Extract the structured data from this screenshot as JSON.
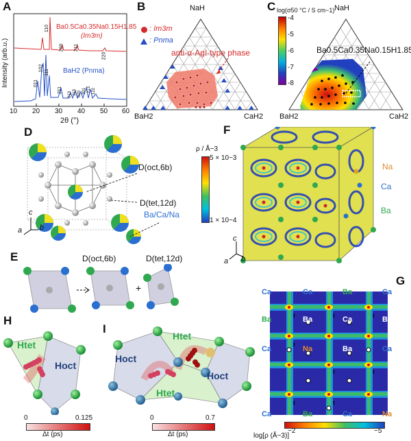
{
  "panels": {
    "A": "A",
    "B": "B",
    "C": "C",
    "D": "D",
    "E": "E",
    "F": "F",
    "G": "G",
    "H": "H",
    "I": "I"
  },
  "panel_A": {
    "ylabel": "Intensity (arb.u.)",
    "xlabel": "2θ (°)",
    "xticks": [
      "10",
      "20",
      "30",
      "40",
      "50",
      "60"
    ],
    "red_formula": "Ba0.5Ca0.35Na0.15H1.85",
    "red_phase": "(Im3m)",
    "blue_label": "BaH2 (Pnma)",
    "red_peaks": [
      "110",
      "200",
      "211",
      "220"
    ],
    "blue_peaks": [
      "011",
      "102",
      "111",
      "211",
      "013",
      "113",
      "020",
      "301",
      "213",
      "122"
    ]
  },
  "panel_B": {
    "top": "NaH",
    "left": "BaH2",
    "right": "CaH2",
    "legend_red": ": Im3m",
    "legend_blue": ": Pnma",
    "annotation": "anti-α-AgI-type phase"
  },
  "panel_C": {
    "colorbar_title": "log(σ50 °C / S cm−1)",
    "colorbar_ticks": [
      "-4",
      "-5",
      "-6",
      "-7",
      "-8"
    ],
    "top": "NaH",
    "left": "BaH2",
    "right": "CaH2",
    "formula": "Ba0.5Ca0.35Na0.15H1.85"
  },
  "panel_D": {
    "label_oct": "D(oct,6b)",
    "label_tet": "D(tet,12d)",
    "label_cations": "Ba/Ca/Na",
    "axes": {
      "c": "c",
      "a": "a",
      "b": "b"
    }
  },
  "panel_E": {
    "label_oct": "D(oct,6b)",
    "label_tet": "D(tet,12d)",
    "plus": "+"
  },
  "panel_F": {
    "density_title": "ρ / Å−3",
    "max": "5 × 10−3",
    "min": "1 × 10−4",
    "na": "Na",
    "ca": "Ca",
    "ba": "Ba",
    "axes": {
      "c": "c",
      "a": "a",
      "b": "b"
    }
  },
  "panel_G": {
    "labels": [
      {
        "t": "Ca",
        "c": "#2a6fd0"
      },
      {
        "t": "Ca",
        "c": "#2a6fd0"
      },
      {
        "t": "Ba",
        "c": "#2fa84f"
      },
      {
        "t": "Ca",
        "c": "#2a6fd0"
      },
      {
        "t": "Ba",
        "c": "#2fa84f"
      },
      {
        "t": "Ba",
        "c": "#ffffff"
      },
      {
        "t": "Ca",
        "c": "#ffffff"
      },
      {
        "t": "Ba",
        "c": "#ffffff"
      },
      {
        "t": "Ca",
        "c": "#2a6fd0"
      },
      {
        "t": "Na",
        "c": "#e08a2b"
      },
      {
        "t": "Ba",
        "c": "#ffffff"
      },
      {
        "t": "Ca",
        "c": "#2a6fd0"
      },
      {
        "t": "Ca",
        "c": "#2a6fd0"
      },
      {
        "t": "Ba",
        "c": "#2fa84f"
      },
      {
        "t": "Ca",
        "c": "#2a6fd0"
      },
      {
        "t": "Na",
        "c": "#e08a2b"
      }
    ],
    "colorbar_title": "log[ρ (Å−3)]",
    "colorbar_min": "−2",
    "colorbar_max": "−5"
  },
  "panel_H": {
    "h_tet": "Htet",
    "h_oct": "Hoct",
    "dt_label": "Δt (ps)",
    "dt_min": "0",
    "dt_max": "0.125"
  },
  "panel_I": {
    "h_tet_top": "Htet",
    "h_oct_left": "Hoct",
    "h_tet_bottom": "Htet",
    "h_oct_right": "Hoct",
    "dt_label": "Δt (ps)",
    "dt_min": "0",
    "dt_max": "0.7"
  },
  "colors": {
    "red": "#d62a2a",
    "blue": "#2450c4",
    "ba": "#2fa84f",
    "ca": "#2a6fd0",
    "na": "#e0a020"
  }
}
